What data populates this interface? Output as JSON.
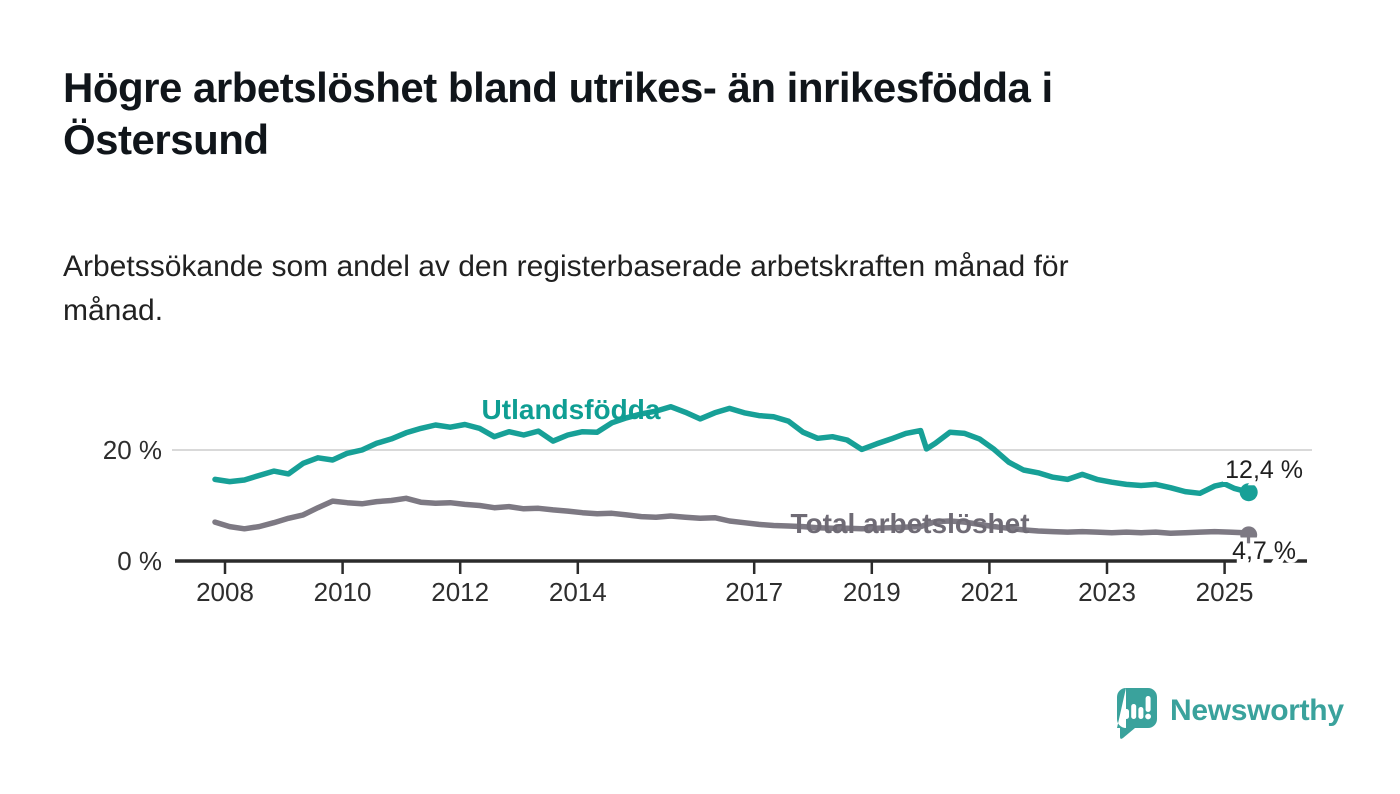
{
  "header": {
    "title_line1": "Högre arbetslöshet bland utrikes- än inrikesfödda i",
    "title_line2": "Östersund",
    "subtitle_line1": "Arbetssökande som andel av den registerbaserade arbetskraften månad för",
    "subtitle_line2": "månad."
  },
  "chart_data": {
    "type": "line",
    "title": "Högre arbetslöshet bland utrikes- än inrikesfödda i Östersund",
    "subtitle": "Arbetssökande som andel av den registerbaserade arbetskraften månad för månad.",
    "xlabel": "",
    "ylabel": "",
    "unit": "%",
    "xlim": [
      2008,
      2026
    ],
    "ylim": [
      0,
      32
    ],
    "grid_values": [
      20
    ],
    "y_ticks": [
      {
        "value": 20,
        "label": "20 %"
      },
      {
        "value": 0,
        "label": "0 %"
      }
    ],
    "x_ticks": [
      {
        "value": 2008,
        "label": "2008"
      },
      {
        "value": 2010,
        "label": "2010"
      },
      {
        "value": 2012,
        "label": "2012"
      },
      {
        "value": 2014,
        "label": "2014"
      },
      {
        "value": 2017,
        "label": "2017"
      },
      {
        "value": 2019,
        "label": "2019"
      },
      {
        "value": 2021,
        "label": "2021"
      },
      {
        "value": 2023,
        "label": "2023"
      },
      {
        "value": 2025,
        "label": "2025"
      }
    ],
    "legend_position": "inline-labels",
    "series": [
      {
        "name": "Utlandsfödda",
        "color": "#17a097",
        "label_color": "#0f9e93",
        "end_label": "12,4 %",
        "end_value": 12.4,
        "points": [
          [
            2008.0,
            14.7
          ],
          [
            2008.25,
            14.3
          ],
          [
            2008.5,
            14.6
          ],
          [
            2008.75,
            15.4
          ],
          [
            2009.0,
            16.2
          ],
          [
            2009.25,
            15.7
          ],
          [
            2009.5,
            17.6
          ],
          [
            2009.75,
            18.6
          ],
          [
            2010.0,
            18.2
          ],
          [
            2010.25,
            19.4
          ],
          [
            2010.5,
            20.0
          ],
          [
            2010.75,
            21.2
          ],
          [
            2011.0,
            22.0
          ],
          [
            2011.25,
            23.1
          ],
          [
            2011.5,
            23.9
          ],
          [
            2011.75,
            24.5
          ],
          [
            2012.0,
            24.1
          ],
          [
            2012.25,
            24.6
          ],
          [
            2012.5,
            23.9
          ],
          [
            2012.75,
            22.4
          ],
          [
            2013.0,
            23.3
          ],
          [
            2013.25,
            22.7
          ],
          [
            2013.5,
            23.4
          ],
          [
            2013.75,
            21.6
          ],
          [
            2014.0,
            22.7
          ],
          [
            2014.25,
            23.3
          ],
          [
            2014.5,
            23.2
          ],
          [
            2014.75,
            24.9
          ],
          [
            2015.0,
            25.8
          ],
          [
            2015.25,
            26.5
          ],
          [
            2015.5,
            27.0
          ],
          [
            2015.75,
            27.8
          ],
          [
            2016.0,
            26.8
          ],
          [
            2016.25,
            25.6
          ],
          [
            2016.5,
            26.7
          ],
          [
            2016.75,
            27.5
          ],
          [
            2017.0,
            26.7
          ],
          [
            2017.25,
            26.2
          ],
          [
            2017.5,
            26.0
          ],
          [
            2017.75,
            25.2
          ],
          [
            2018.0,
            23.2
          ],
          [
            2018.25,
            22.1
          ],
          [
            2018.5,
            22.4
          ],
          [
            2018.75,
            21.8
          ],
          [
            2019.0,
            20.1
          ],
          [
            2019.25,
            21.1
          ],
          [
            2019.5,
            22.0
          ],
          [
            2019.75,
            23.0
          ],
          [
            2020.0,
            23.5
          ],
          [
            2020.1,
            20.2
          ],
          [
            2020.25,
            21.2
          ],
          [
            2020.5,
            23.2
          ],
          [
            2020.75,
            23.0
          ],
          [
            2021.0,
            22.0
          ],
          [
            2021.25,
            20.1
          ],
          [
            2021.5,
            17.8
          ],
          [
            2021.75,
            16.4
          ],
          [
            2022.0,
            15.9
          ],
          [
            2022.25,
            15.1
          ],
          [
            2022.5,
            14.7
          ],
          [
            2022.75,
            15.6
          ],
          [
            2023.0,
            14.7
          ],
          [
            2023.25,
            14.2
          ],
          [
            2023.5,
            13.8
          ],
          [
            2023.75,
            13.6
          ],
          [
            2024.0,
            13.8
          ],
          [
            2024.25,
            13.2
          ],
          [
            2024.5,
            12.5
          ],
          [
            2024.75,
            12.2
          ],
          [
            2025.0,
            13.5
          ],
          [
            2025.17,
            13.9
          ],
          [
            2025.33,
            13.1
          ],
          [
            2025.58,
            12.4
          ]
        ]
      },
      {
        "name": "Total arbetslöshet",
        "color": "#7d7983",
        "label_color": "#6f6b75",
        "end_label": "4,7 %",
        "end_value": 4.7,
        "points": [
          [
            2008.0,
            7.0
          ],
          [
            2008.25,
            6.2
          ],
          [
            2008.5,
            5.8
          ],
          [
            2008.75,
            6.2
          ],
          [
            2009.0,
            6.9
          ],
          [
            2009.25,
            7.7
          ],
          [
            2009.5,
            8.3
          ],
          [
            2009.75,
            9.6
          ],
          [
            2010.0,
            10.8
          ],
          [
            2010.25,
            10.5
          ],
          [
            2010.5,
            10.3
          ],
          [
            2010.75,
            10.7
          ],
          [
            2011.0,
            10.9
          ],
          [
            2011.25,
            11.3
          ],
          [
            2011.5,
            10.6
          ],
          [
            2011.75,
            10.4
          ],
          [
            2012.0,
            10.5
          ],
          [
            2012.25,
            10.2
          ],
          [
            2012.5,
            10.0
          ],
          [
            2012.75,
            9.6
          ],
          [
            2013.0,
            9.8
          ],
          [
            2013.25,
            9.4
          ],
          [
            2013.5,
            9.5
          ],
          [
            2013.75,
            9.2
          ],
          [
            2014.0,
            9.0
          ],
          [
            2014.25,
            8.7
          ],
          [
            2014.5,
            8.5
          ],
          [
            2014.75,
            8.6
          ],
          [
            2015.0,
            8.3
          ],
          [
            2015.25,
            8.0
          ],
          [
            2015.5,
            7.9
          ],
          [
            2015.75,
            8.1
          ],
          [
            2016.0,
            7.9
          ],
          [
            2016.25,
            7.7
          ],
          [
            2016.5,
            7.8
          ],
          [
            2016.75,
            7.2
          ],
          [
            2017.0,
            6.9
          ],
          [
            2017.25,
            6.6
          ],
          [
            2017.5,
            6.4
          ],
          [
            2017.75,
            6.3
          ],
          [
            2018.0,
            6.2
          ],
          [
            2018.25,
            6.0
          ],
          [
            2018.5,
            5.9
          ],
          [
            2018.75,
            5.9
          ],
          [
            2019.0,
            5.8
          ],
          [
            2019.25,
            5.9
          ],
          [
            2019.5,
            6.0
          ],
          [
            2019.75,
            6.1
          ],
          [
            2020.0,
            6.2
          ],
          [
            2020.25,
            7.1
          ],
          [
            2020.5,
            7.2
          ],
          [
            2020.75,
            7.0
          ],
          [
            2021.0,
            6.6
          ],
          [
            2021.25,
            6.2
          ],
          [
            2021.5,
            5.9
          ],
          [
            2021.75,
            5.6
          ],
          [
            2022.0,
            5.4
          ],
          [
            2022.25,
            5.3
          ],
          [
            2022.5,
            5.2
          ],
          [
            2022.75,
            5.3
          ],
          [
            2023.0,
            5.2
          ],
          [
            2023.25,
            5.1
          ],
          [
            2023.5,
            5.2
          ],
          [
            2023.75,
            5.1
          ],
          [
            2024.0,
            5.2
          ],
          [
            2024.25,
            5.0
          ],
          [
            2024.5,
            5.1
          ],
          [
            2024.75,
            5.2
          ],
          [
            2025.0,
            5.3
          ],
          [
            2025.25,
            5.2
          ],
          [
            2025.5,
            5.1
          ],
          [
            2025.58,
            4.7
          ]
        ]
      }
    ]
  },
  "footer": {
    "brand": "Newsworthy",
    "brand_color": "#3aa29c"
  }
}
